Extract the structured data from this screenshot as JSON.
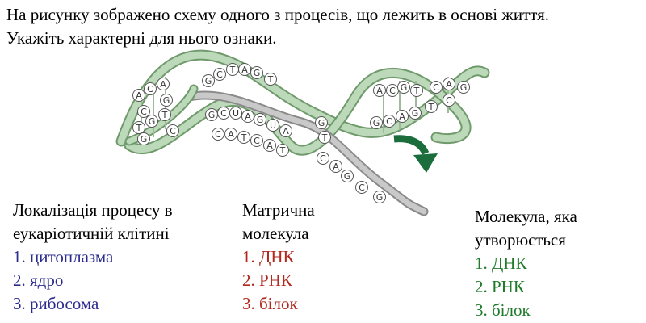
{
  "question": {
    "line1": "На рисунку зображено схему одного з процесів, що лежить в основі життя.",
    "line2": "Укажіть характерні для нього ознаки."
  },
  "diagram": {
    "left_pairs": [
      [
        "A",
        "T"
      ],
      [
        "C",
        "G"
      ],
      [
        "A",
        "T"
      ],
      [
        "C",
        "G"
      ],
      [
        "G",
        "C"
      ]
    ],
    "mid_top": [
      "G",
      "C",
      "T",
      "A",
      "G",
      "T"
    ],
    "mid_bottom": [
      "G",
      "C",
      "U",
      "A",
      "G",
      "U",
      "A"
    ],
    "mid_bottom2": [
      "C",
      "A",
      "T",
      "C",
      "A",
      "T"
    ],
    "right_top": [
      "A",
      "C",
      "G",
      "T",
      "C",
      "A",
      "G"
    ],
    "right_bottom": [
      "G",
      "C",
      "A",
      "G",
      "T",
      "C"
    ],
    "tail": [
      "G",
      "T",
      "C",
      "A",
      "G",
      "C",
      "G"
    ],
    "colors": {
      "strand_fill": "#bcd9b9",
      "strand_edge": "#6f9a6b",
      "rna_strand": "#a9a9a9",
      "arrow": "#1b6e3b"
    }
  },
  "columns": {
    "localization": {
      "title_line1": "Локалізація процесу в",
      "title_line2": "еукаріотичній клітині",
      "options": [
        "1. цитоплазма",
        "2. ядро",
        "3. рибосома"
      ],
      "color": "#2a2a8f"
    },
    "template": {
      "title_line1": "Матрична",
      "title_line2": "молекула",
      "options": [
        "1. ДНК",
        "2. РНК",
        "3. білок"
      ],
      "color": "#b2281e"
    },
    "product": {
      "title_line1": "Молекула, яка",
      "title_line2": "утворюється",
      "options": [
        "1. ДНК",
        "2. РНК",
        "3. білок"
      ],
      "color": "#1f7a2a"
    }
  }
}
